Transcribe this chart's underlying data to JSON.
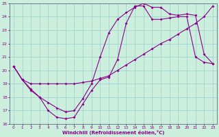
{
  "xlabel": "Windchill (Refroidissement éolien,°C)",
  "xlim": [
    -0.5,
    23.5
  ],
  "ylim": [
    16,
    25
  ],
  "xtick_labels": [
    "0",
    "1",
    "2",
    "3",
    "4",
    "5",
    "6",
    "7",
    "8",
    "9",
    "10",
    "11",
    "12",
    "13",
    "14",
    "15",
    "16",
    "17",
    "18",
    "19",
    "20",
    "21",
    "22",
    "23"
  ],
  "xtick_vals": [
    0,
    1,
    2,
    3,
    4,
    5,
    6,
    7,
    8,
    9,
    10,
    11,
    12,
    13,
    14,
    15,
    16,
    17,
    18,
    19,
    20,
    21,
    22,
    23
  ],
  "ytick_vals": [
    16,
    17,
    18,
    19,
    20,
    21,
    22,
    23,
    24,
    25
  ],
  "bg_color": "#cceedd",
  "grid_color": "#99cccc",
  "line_color": "#880088",
  "spine_color": "#666688",
  "line1_x": [
    0,
    1,
    2,
    3,
    4,
    5,
    6,
    7,
    8,
    9,
    10,
    11,
    12,
    13,
    14,
    15,
    16,
    17,
    18,
    19,
    20,
    21,
    22,
    23
  ],
  "line1_y": [
    20.3,
    19.3,
    18.6,
    18.0,
    17.0,
    16.5,
    16.4,
    16.5,
    17.5,
    18.5,
    19.3,
    19.5,
    20.8,
    23.5,
    24.8,
    24.8,
    23.8,
    23.8,
    23.9,
    24.0,
    24.0,
    21.0,
    20.6,
    20.5
  ],
  "line2_x": [
    0,
    1,
    2,
    3,
    4,
    5,
    6,
    7,
    8,
    9,
    10,
    11,
    12,
    13,
    14,
    15,
    16,
    17,
    18,
    19,
    20,
    21,
    22,
    23
  ],
  "line2_y": [
    20.3,
    19.3,
    19.0,
    19.0,
    19.0,
    19.0,
    19.0,
    19.0,
    19.1,
    19.2,
    19.4,
    19.6,
    20.0,
    20.4,
    20.8,
    21.2,
    21.6,
    22.0,
    22.3,
    22.7,
    23.1,
    23.5,
    24.0,
    24.8
  ],
  "line3_x": [
    0,
    1,
    2,
    3,
    4,
    5,
    6,
    7,
    8,
    9,
    10,
    11,
    12,
    13,
    14,
    15,
    16,
    17,
    18,
    19,
    20,
    21,
    22,
    23
  ],
  "line3_y": [
    20.3,
    19.3,
    18.5,
    18.0,
    17.6,
    17.2,
    16.9,
    17.0,
    17.9,
    19.0,
    21.0,
    22.8,
    23.8,
    24.3,
    24.7,
    25.0,
    24.7,
    24.7,
    24.2,
    24.1,
    24.2,
    24.1,
    21.2,
    20.5
  ]
}
